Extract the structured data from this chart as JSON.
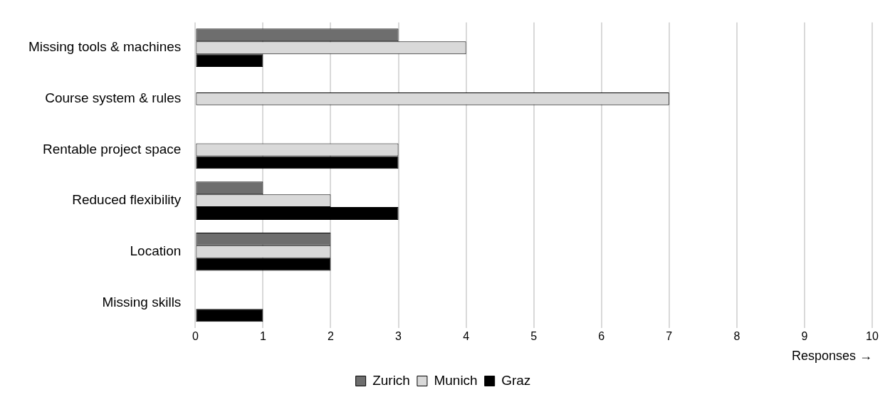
{
  "chart_data": {
    "type": "bar",
    "orientation": "horizontal",
    "categories": [
      "Missing tools & machines",
      "Course system & rules",
      "Rentable project space",
      "Reduced flexibility",
      "Location",
      "Missing skills"
    ],
    "series": [
      {
        "name": "Zurich",
        "color": "#6e6e6e",
        "values": [
          3,
          null,
          null,
          1,
          2,
          null
        ]
      },
      {
        "name": "Munich",
        "color": "#d9d9d9",
        "values": [
          4,
          7,
          3,
          2,
          2,
          null
        ]
      },
      {
        "name": "Graz",
        "color": "#000000",
        "values": [
          1,
          null,
          3,
          3,
          2,
          1
        ]
      }
    ],
    "xlim": [
      0,
      10
    ],
    "xticks": [
      0,
      1,
      2,
      3,
      4,
      5,
      6,
      7,
      8,
      9,
      10
    ],
    "xlabel": "Responses →",
    "grid": "x",
    "legend": "bottom"
  }
}
